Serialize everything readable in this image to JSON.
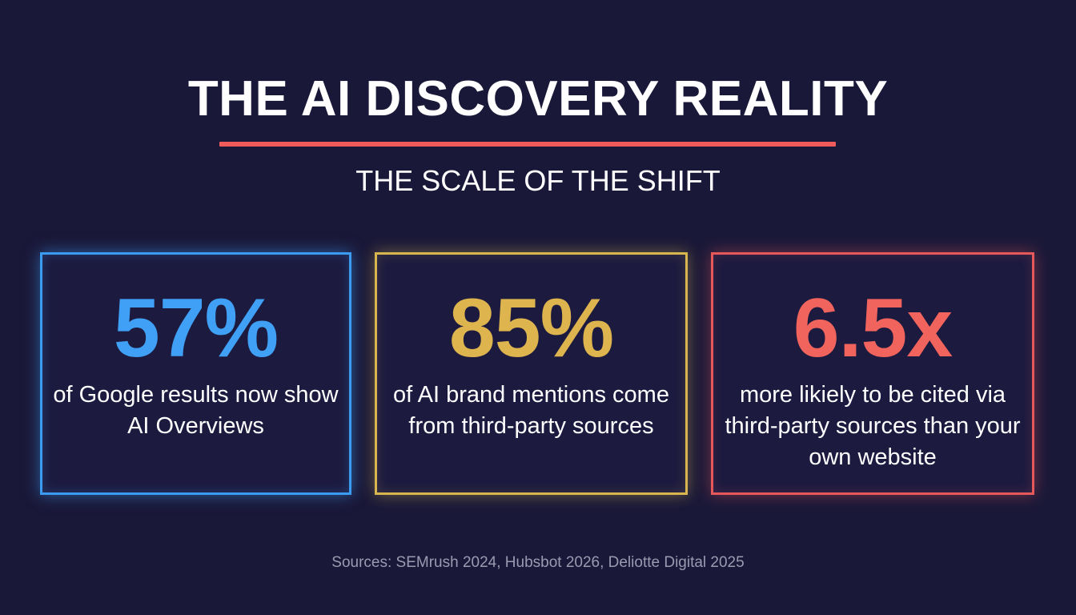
{
  "header": {
    "title": "THE AI DISCOVERY REALITY",
    "subtitle": "THE SCALE OF THE SHIFT"
  },
  "stats": [
    {
      "value": "57%",
      "description": "of Google results now show AI Overviews",
      "accent_color": "#3fa0f5"
    },
    {
      "value": "85%",
      "description": "of AI brand mentions come from third-party sources",
      "accent_color": "#ddb44e"
    },
    {
      "value": "6.5x",
      "description": "more likiely to be cited via third-party sources than your own website",
      "accent_color": "#f1645d"
    }
  ],
  "footer": {
    "sources": "Sources: SEMrush 2024, Hubsbot 2026, Deliotte Digital 2025"
  },
  "colors": {
    "background": "#1a1838",
    "title_rule": "#ef5b5b"
  }
}
